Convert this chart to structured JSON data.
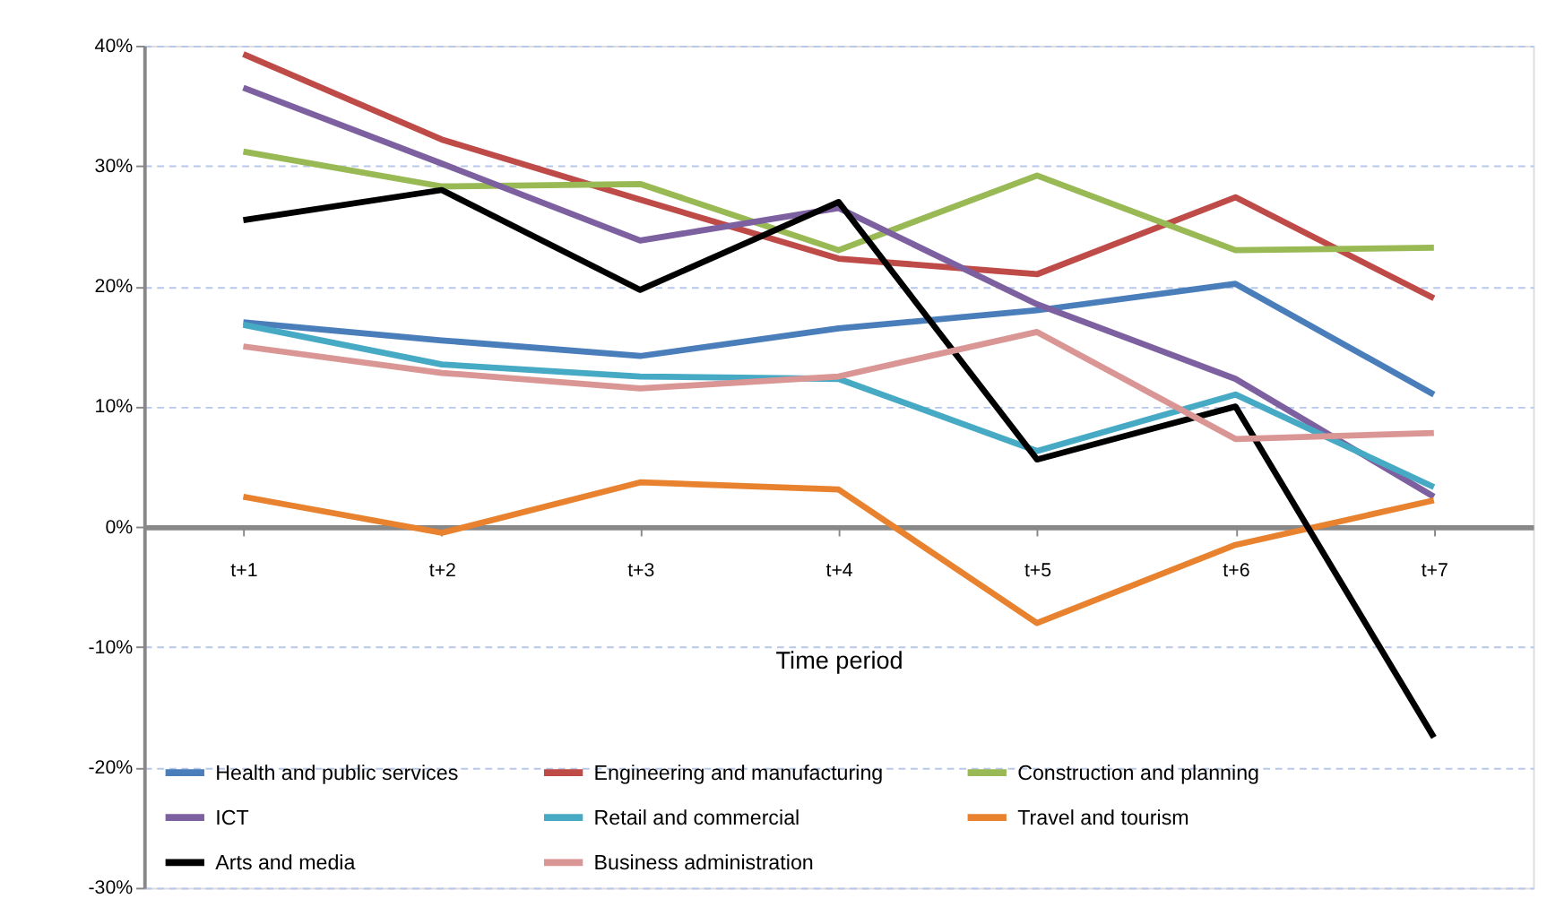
{
  "chart_data": {
    "type": "line",
    "xlabel": "Time period",
    "categories": [
      "t+1",
      "t+2",
      "t+3",
      "t+4",
      "t+5",
      "t+6",
      "t+7"
    ],
    "series": [
      {
        "name": "Health and public services",
        "color": "#4a7ebb",
        "values": [
          17,
          15.5,
          14.2,
          16.5,
          18,
          20.2,
          11
        ]
      },
      {
        "name": "Engineering and manufacturing",
        "color": "#be4b48",
        "values": [
          39.3,
          32.2,
          27.2,
          22.3,
          21,
          27.4,
          19
        ]
      },
      {
        "name": "Construction and planning",
        "color": "#98b954",
        "values": [
          31.2,
          28.3,
          28.5,
          23,
          29.2,
          23,
          23.2
        ]
      },
      {
        "name": "ICT",
        "color": "#7d60a0",
        "values": [
          36.5,
          30.2,
          23.8,
          26.5,
          18.5,
          12.3,
          2.5
        ]
      },
      {
        "name": "Retail and commercial",
        "color": "#46aac5",
        "values": [
          16.8,
          13.5,
          12.5,
          12.3,
          6.3,
          11,
          3.3
        ]
      },
      {
        "name": "Travel and tourism",
        "color": "#e8822e",
        "values": [
          2.5,
          -0.5,
          3.7,
          3.1,
          -8,
          -1.5,
          2.2
        ]
      },
      {
        "name": "Arts and media",
        "color": "#000000",
        "values": [
          25.5,
          28,
          19.7,
          27,
          5.6,
          10,
          -17.5
        ]
      },
      {
        "name": "Business administration",
        "color": "#d99694",
        "values": [
          15,
          12.8,
          11.5,
          12.5,
          16.2,
          7.3,
          7.8
        ]
      }
    ],
    "ylim": [
      -30,
      40
    ],
    "yticks": [
      {
        "value": -30,
        "label": "-30%"
      },
      {
        "value": -20,
        "label": "-20%"
      },
      {
        "value": -10,
        "label": "-10%"
      },
      {
        "value": 0,
        "label": "0%"
      },
      {
        "value": 10,
        "label": "10%"
      },
      {
        "value": 20,
        "label": "20%"
      },
      {
        "value": 30,
        "label": "30%"
      },
      {
        "value": 40,
        "label": "40%"
      }
    ],
    "grid": "y",
    "legend": "bottom",
    "marker": "none",
    "line_style": "solid"
  }
}
